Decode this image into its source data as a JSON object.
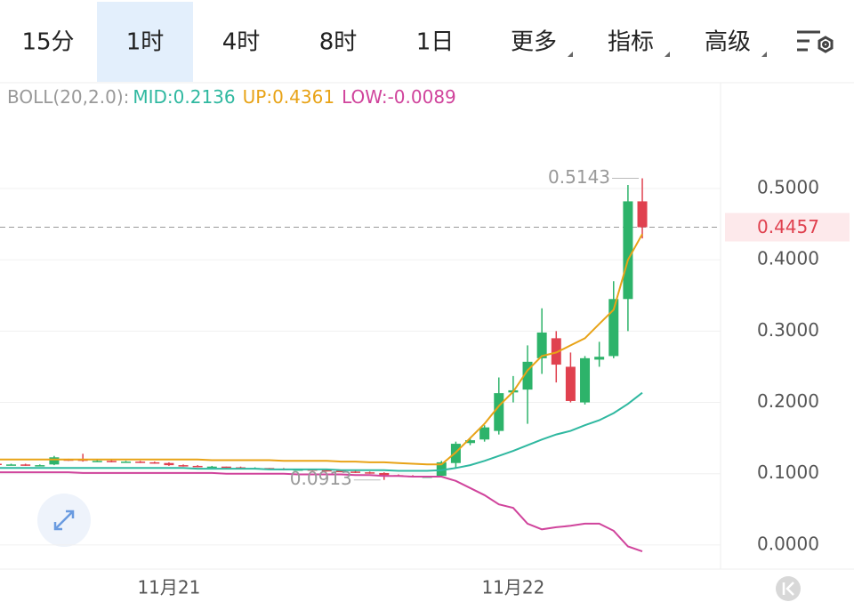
{
  "tabs": [
    "15分",
    "1时",
    "4时",
    "8时",
    "1日",
    "更多",
    "指标",
    "高级"
  ],
  "selected_tab": 1,
  "chart_data": {
    "type": "candlestick",
    "indicator": "BOLL(20,2.0):",
    "categories": [
      null,
      null,
      null,
      null,
      null,
      null,
      null,
      null,
      null,
      null,
      null,
      null,
      "11月21",
      null,
      null,
      null,
      null,
      null,
      null,
      null,
      null,
      null,
      null,
      null,
      null,
      null,
      null,
      null,
      null,
      null,
      null,
      null,
      null,
      null,
      null,
      null,
      "11月22",
      null,
      null,
      null,
      null,
      null,
      null,
      null,
      null,
      null
    ],
    "open": [
      0.114,
      0.113,
      0.113,
      0.112,
      0.113,
      0.12,
      0.12,
      0.118,
      0.118,
      0.117,
      0.117,
      0.116,
      0.115,
      0.112,
      0.111,
      0.11,
      0.11,
      0.109,
      0.108,
      0.108,
      0.107,
      0.106,
      0.106,
      0.105,
      0.104,
      0.103,
      0.102,
      0.101,
      0.098,
      0.097,
      0.096,
      0.097,
      0.115,
      0.143,
      0.148,
      0.16,
      0.214,
      0.218,
      0.262,
      0.29,
      0.25,
      0.2,
      0.26,
      0.265,
      0.345,
      0.482
    ],
    "high": [
      0.115,
      0.114,
      0.114,
      0.113,
      0.125,
      0.121,
      0.128,
      0.119,
      0.119,
      0.118,
      0.118,
      0.117,
      0.116,
      0.113,
      0.112,
      0.111,
      0.11,
      0.11,
      0.109,
      0.108,
      0.108,
      0.107,
      0.106,
      0.106,
      0.105,
      0.104,
      0.103,
      0.102,
      0.099,
      0.098,
      0.097,
      0.118,
      0.145,
      0.15,
      0.168,
      0.235,
      0.237,
      0.28,
      0.332,
      0.3,
      0.27,
      0.265,
      0.285,
      0.37,
      0.505,
      0.5143
    ],
    "low": [
      0.112,
      0.112,
      0.111,
      0.111,
      0.112,
      0.118,
      0.117,
      0.117,
      0.116,
      0.116,
      0.115,
      0.114,
      0.111,
      0.11,
      0.109,
      0.109,
      0.108,
      0.107,
      0.107,
      0.106,
      0.105,
      0.105,
      0.104,
      0.103,
      0.102,
      0.101,
      0.1,
      0.0913,
      0.096,
      0.095,
      0.095,
      0.095,
      0.108,
      0.14,
      0.145,
      0.155,
      0.2,
      0.17,
      0.24,
      0.228,
      0.2,
      0.197,
      0.25,
      0.262,
      0.3,
      0.43
    ],
    "close": [
      0.113,
      0.113,
      0.112,
      0.112,
      0.123,
      0.119,
      0.118,
      0.118,
      0.117,
      0.117,
      0.116,
      0.115,
      0.112,
      0.111,
      0.11,
      0.11,
      0.109,
      0.108,
      0.108,
      0.107,
      0.106,
      0.106,
      0.105,
      0.104,
      0.103,
      0.102,
      0.101,
      0.098,
      0.097,
      0.096,
      0.096,
      0.116,
      0.142,
      0.147,
      0.165,
      0.213,
      0.217,
      0.257,
      0.298,
      0.253,
      0.202,
      0.262,
      0.264,
      0.345,
      0.482,
      0.4457
    ],
    "up_color": "#2db36a",
    "down_color": "#e0414f",
    "series": [
      {
        "name": "MID:0.2136",
        "color": "#2fb8a0",
        "values": [
          0.108,
          0.108,
          0.108,
          0.108,
          0.108,
          0.108,
          0.108,
          0.108,
          0.108,
          0.108,
          0.108,
          0.108,
          0.108,
          0.108,
          0.107,
          0.107,
          0.107,
          0.107,
          0.107,
          0.106,
          0.106,
          0.106,
          0.106,
          0.106,
          0.105,
          0.105,
          0.105,
          0.105,
          0.104,
          0.104,
          0.104,
          0.105,
          0.108,
          0.112,
          0.118,
          0.125,
          0.132,
          0.14,
          0.148,
          0.155,
          0.16,
          0.168,
          0.175,
          0.185,
          0.198,
          0.2136
        ]
      },
      {
        "name": "UP:0.4361",
        "color": "#e8a317",
        "values": [
          0.12,
          0.12,
          0.12,
          0.12,
          0.12,
          0.12,
          0.12,
          0.12,
          0.12,
          0.12,
          0.12,
          0.12,
          0.12,
          0.12,
          0.12,
          0.119,
          0.119,
          0.119,
          0.119,
          0.119,
          0.118,
          0.118,
          0.118,
          0.118,
          0.117,
          0.117,
          0.116,
          0.116,
          0.115,
          0.114,
          0.113,
          0.113,
          0.13,
          0.15,
          0.17,
          0.195,
          0.215,
          0.245,
          0.265,
          0.27,
          0.28,
          0.29,
          0.31,
          0.33,
          0.4,
          0.4361
        ]
      },
      {
        "name": "LOW:-0.0089",
        "color": "#d0449c",
        "values": [
          0.102,
          0.102,
          0.102,
          0.102,
          0.102,
          0.102,
          0.101,
          0.101,
          0.101,
          0.101,
          0.101,
          0.101,
          0.101,
          0.101,
          0.101,
          0.101,
          0.1,
          0.1,
          0.1,
          0.1,
          0.1,
          0.099,
          0.099,
          0.099,
          0.099,
          0.098,
          0.098,
          0.097,
          0.097,
          0.096,
          0.096,
          0.096,
          0.09,
          0.08,
          0.07,
          0.057,
          0.052,
          0.03,
          0.022,
          0.025,
          0.027,
          0.03,
          0.03,
          0.02,
          -0.002,
          -0.0089
        ]
      }
    ],
    "max_label": 0.5143,
    "min_label": 0.0913,
    "last_price": 0.4457,
    "ylim": [
      -0.035,
      0.6
    ],
    "yticks": [
      {
        "value": 0,
        "label": "0.0000"
      },
      {
        "value": 0.1,
        "label": "0.1000"
      },
      {
        "value": 0.2,
        "label": "0.2000"
      },
      {
        "value": 0.3,
        "label": "0.3000"
      },
      {
        "value": 0.4,
        "label": "0.4000"
      },
      {
        "value": 0.5,
        "label": "0.5000"
      }
    ],
    "grid": true
  }
}
